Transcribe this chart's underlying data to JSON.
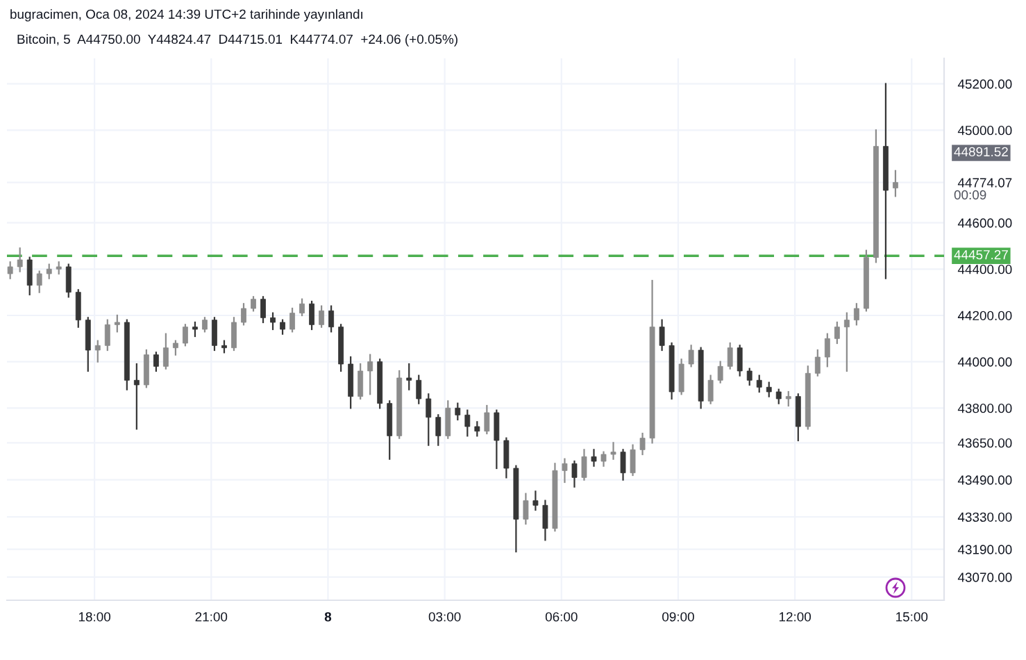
{
  "chart_data": {
    "type": "candlestick",
    "title": "bugracimen, Oca 08, 2024 14:39 UTC+2 tarihinde yayınlandı",
    "subtitle": "Bitcoin, 5  A44750.00  Y44824.47  D44715.01  K44774.07  +24.06 (+0.05%)",
    "grid": true,
    "xlim": [
      "2024-01-07T15:45",
      "2024-01-08T15:50"
    ],
    "xticks": [
      {
        "value": "2024-01-07T18:00",
        "label": "18:00"
      },
      {
        "value": "2024-01-07T21:00",
        "label": "21:00"
      },
      {
        "value": "2024-01-08T00:00",
        "label": "8"
      },
      {
        "value": "2024-01-08T03:00",
        "label": "03:00"
      },
      {
        "value": "2024-01-08T06:00",
        "label": "06:00"
      },
      {
        "value": "2024-01-08T09:00",
        "label": "09:00"
      },
      {
        "value": "2024-01-08T12:00",
        "label": "12:00"
      },
      {
        "value": "2024-01-08T15:00",
        "label": "15:00"
      }
    ],
    "ylim": [
      42970,
      45310
    ],
    "yticks": [
      {
        "value": 45200,
        "label": "45200.00"
      },
      {
        "value": 45000,
        "label": "45000.00"
      },
      {
        "value": 44774.07,
        "label": "44774.07"
      },
      {
        "value": 44600,
        "label": "44600.00"
      },
      {
        "value": 44400,
        "label": "44400.00"
      },
      {
        "value": 44200,
        "label": "44200.00"
      },
      {
        "value": 44000,
        "label": "44000.00"
      },
      {
        "value": 43800,
        "label": "43800.00"
      },
      {
        "value": 43650,
        "label": "43650.00"
      },
      {
        "value": 43490,
        "label": "43490.00"
      },
      {
        "value": 43330,
        "label": "43330.00"
      },
      {
        "value": 43190,
        "label": "43190.00"
      },
      {
        "value": 43070,
        "label": "43070.00"
      }
    ],
    "ref_lines": [
      {
        "axis": "y",
        "value": 44457.27,
        "label": "44457.27",
        "color": "#4caf50",
        "line_style": "dashed"
      }
    ],
    "annotations": [
      "44891.52",
      "00:09"
    ],
    "x": [
      "2024-01-07T15:50",
      "2024-01-07T16:05",
      "2024-01-07T16:20",
      "2024-01-07T16:35",
      "2024-01-07T16:50",
      "2024-01-07T17:05",
      "2024-01-07T17:20",
      "2024-01-07T17:35",
      "2024-01-07T17:50",
      "2024-01-07T18:05",
      "2024-01-07T18:20",
      "2024-01-07T18:35",
      "2024-01-07T18:50",
      "2024-01-07T19:05",
      "2024-01-07T19:20",
      "2024-01-07T19:35",
      "2024-01-07T19:50",
      "2024-01-07T20:05",
      "2024-01-07T20:20",
      "2024-01-07T20:35",
      "2024-01-07T20:50",
      "2024-01-07T21:05",
      "2024-01-07T21:20",
      "2024-01-07T21:35",
      "2024-01-07T21:50",
      "2024-01-07T22:05",
      "2024-01-07T22:20",
      "2024-01-07T22:35",
      "2024-01-07T22:50",
      "2024-01-07T23:05",
      "2024-01-07T23:20",
      "2024-01-07T23:35",
      "2024-01-07T23:50",
      "2024-01-08T00:05",
      "2024-01-08T00:20",
      "2024-01-08T00:35",
      "2024-01-08T00:50",
      "2024-01-08T01:05",
      "2024-01-08T01:20",
      "2024-01-08T01:35",
      "2024-01-08T01:50",
      "2024-01-08T02:05",
      "2024-01-08T02:20",
      "2024-01-08T02:35",
      "2024-01-08T02:50",
      "2024-01-08T03:05",
      "2024-01-08T03:20",
      "2024-01-08T03:35",
      "2024-01-08T03:50",
      "2024-01-08T04:05",
      "2024-01-08T04:20",
      "2024-01-08T04:35",
      "2024-01-08T04:50",
      "2024-01-08T05:05",
      "2024-01-08T05:20",
      "2024-01-08T05:35",
      "2024-01-08T05:50",
      "2024-01-08T06:05",
      "2024-01-08T06:20",
      "2024-01-08T06:35",
      "2024-01-08T06:50",
      "2024-01-08T07:05",
      "2024-01-08T07:20",
      "2024-01-08T07:35",
      "2024-01-08T07:50",
      "2024-01-08T08:05",
      "2024-01-08T08:20",
      "2024-01-08T08:35",
      "2024-01-08T08:50",
      "2024-01-08T09:05",
      "2024-01-08T09:20",
      "2024-01-08T09:35",
      "2024-01-08T09:50",
      "2024-01-08T10:05",
      "2024-01-08T10:20",
      "2024-01-08T10:35",
      "2024-01-08T10:50",
      "2024-01-08T11:05",
      "2024-01-08T11:20",
      "2024-01-08T11:35",
      "2024-01-08T11:50",
      "2024-01-08T12:05",
      "2024-01-08T12:20",
      "2024-01-08T12:35",
      "2024-01-08T12:50",
      "2024-01-08T13:05",
      "2024-01-08T13:20",
      "2024-01-08T13:35",
      "2024-01-08T13:50",
      "2024-01-08T14:05",
      "2024-01-08T14:20",
      "2024-01-08T14:35"
    ],
    "ohlc": [
      [
        44380,
        44430,
        44360,
        44410
      ],
      [
        44410,
        44490,
        44390,
        44440
      ],
      [
        44440,
        44450,
        44290,
        44330
      ],
      [
        44330,
        44390,
        44300,
        44380
      ],
      [
        44380,
        44420,
        44360,
        44400
      ],
      [
        44400,
        44430,
        44380,
        44410
      ],
      [
        44410,
        44420,
        44280,
        44300
      ],
      [
        44300,
        44310,
        44150,
        44180
      ],
      [
        44180,
        44190,
        43960,
        44050
      ],
      [
        44050,
        44090,
        44000,
        44070
      ],
      [
        44070,
        44180,
        44050,
        44160
      ],
      [
        44160,
        44200,
        44130,
        44170
      ],
      [
        44170,
        44180,
        43880,
        43920
      ],
      [
        43920,
        43990,
        43710,
        43900
      ],
      [
        43900,
        44050,
        43890,
        44030
      ],
      [
        44030,
        44040,
        43960,
        43980
      ],
      [
        43980,
        44120,
        43970,
        44060
      ],
      [
        44060,
        44090,
        44030,
        44080
      ],
      [
        44080,
        44160,
        44070,
        44150
      ],
      [
        44150,
        44170,
        44110,
        44140
      ],
      [
        44140,
        44190,
        44130,
        44180
      ],
      [
        44180,
        44190,
        44050,
        44070
      ],
      [
        44070,
        44090,
        44040,
        44060
      ],
      [
        44060,
        44190,
        44050,
        44170
      ],
      [
        44170,
        44250,
        44160,
        44230
      ],
      [
        44230,
        44280,
        44220,
        44270
      ],
      [
        44270,
        44280,
        44170,
        44190
      ],
      [
        44190,
        44210,
        44140,
        44170
      ],
      [
        44170,
        44180,
        44120,
        44140
      ],
      [
        44140,
        44230,
        44130,
        44210
      ],
      [
        44210,
        44270,
        44200,
        44250
      ],
      [
        44250,
        44260,
        44140,
        44160
      ],
      [
        44160,
        44240,
        44150,
        44220
      ],
      [
        44220,
        44240,
        44130,
        44150
      ],
      [
        44150,
        44160,
        43960,
        43990
      ],
      [
        43990,
        44020,
        43800,
        43850
      ],
      [
        43850,
        43990,
        43840,
        43960
      ],
      [
        43960,
        44030,
        43860,
        44000
      ],
      [
        44000,
        44010,
        43800,
        43820
      ],
      [
        43820,
        43830,
        43580,
        43680
      ],
      [
        43680,
        43960,
        43670,
        43930
      ],
      [
        43930,
        43990,
        43880,
        43920
      ],
      [
        43920,
        43940,
        43820,
        43840
      ],
      [
        43840,
        43860,
        43640,
        43760
      ],
      [
        43760,
        43770,
        43640,
        43680
      ],
      [
        43680,
        43830,
        43670,
        43800
      ],
      [
        43800,
        43820,
        43750,
        43770
      ],
      [
        43770,
        43790,
        43680,
        43720
      ],
      [
        43720,
        43740,
        43680,
        43700
      ],
      [
        43700,
        43810,
        43690,
        43780
      ],
      [
        43780,
        43790,
        43540,
        43660
      ],
      [
        43660,
        43670,
        43500,
        43540
      ],
      [
        43540,
        43550,
        43180,
        43320
      ],
      [
        43320,
        43430,
        43300,
        43400
      ],
      [
        43400,
        43440,
        43360,
        43380
      ],
      [
        43380,
        43400,
        43230,
        43280
      ],
      [
        43280,
        43560,
        43270,
        43530
      ],
      [
        43530,
        43580,
        43480,
        43560
      ],
      [
        43560,
        43570,
        43460,
        43500
      ],
      [
        43500,
        43620,
        43490,
        43590
      ],
      [
        43590,
        43620,
        43550,
        43570
      ],
      [
        43570,
        43610,
        43550,
        43600
      ],
      [
        43600,
        43650,
        43580,
        43610
      ],
      [
        43610,
        43620,
        43490,
        43520
      ],
      [
        43520,
        43640,
        43510,
        43620
      ],
      [
        43620,
        43690,
        43600,
        43670
      ],
      [
        43670,
        44350,
        43650,
        44150
      ],
      [
        44150,
        44180,
        44050,
        44070
      ],
      [
        44070,
        44080,
        43840,
        43870
      ],
      [
        43870,
        44010,
        43860,
        43990
      ],
      [
        43990,
        44070,
        43980,
        44050
      ],
      [
        44050,
        44060,
        43800,
        43830
      ],
      [
        43830,
        43940,
        43820,
        43920
      ],
      [
        43920,
        44000,
        43910,
        43980
      ],
      [
        43980,
        44080,
        43970,
        44060
      ],
      [
        44060,
        44070,
        43940,
        43960
      ],
      [
        43960,
        43970,
        43900,
        43920
      ],
      [
        43920,
        43940,
        43870,
        43890
      ],
      [
        43890,
        43910,
        43850,
        43870
      ],
      [
        43870,
        43880,
        43820,
        43840
      ],
      [
        43840,
        43870,
        43810,
        43850
      ],
      [
        43850,
        43860,
        43660,
        43720
      ],
      [
        43720,
        43980,
        43710,
        43950
      ],
      [
        43950,
        44050,
        43940,
        44020
      ],
      [
        44020,
        44120,
        43980,
        44100
      ],
      [
        44100,
        44170,
        44080,
        44150
      ],
      [
        44150,
        44210,
        43960,
        44180
      ],
      [
        44180,
        44250,
        44160,
        44230
      ],
      [
        44230,
        44480,
        44220,
        44450
      ],
      [
        44450,
        45000,
        44430,
        44930
      ],
      [
        44930,
        45200,
        44360,
        44740
      ],
      [
        44750,
        44824.47,
        44715.01,
        44774.07
      ]
    ],
    "colors": [
      "#8c8c8c",
      "#8c8c8c",
      "#363636",
      "#8c8c8c",
      "#8c8c8c",
      "#8c8c8c",
      "#363636",
      "#363636",
      "#363636",
      "#8c8c8c",
      "#8c8c8c",
      "#8c8c8c",
      "#363636",
      "#363636",
      "#8c8c8c",
      "#363636",
      "#8c8c8c",
      "#8c8c8c",
      "#8c8c8c",
      "#363636",
      "#8c8c8c",
      "#363636",
      "#363636",
      "#8c8c8c",
      "#8c8c8c",
      "#8c8c8c",
      "#363636",
      "#363636",
      "#363636",
      "#8c8c8c",
      "#8c8c8c",
      "#363636",
      "#8c8c8c",
      "#363636",
      "#363636",
      "#363636",
      "#8c8c8c",
      "#8c8c8c",
      "#363636",
      "#363636",
      "#8c8c8c",
      "#363636",
      "#363636",
      "#363636",
      "#363636",
      "#8c8c8c",
      "#363636",
      "#363636",
      "#363636",
      "#8c8c8c",
      "#363636",
      "#363636",
      "#363636",
      "#8c8c8c",
      "#363636",
      "#363636",
      "#8c8c8c",
      "#8c8c8c",
      "#363636",
      "#8c8c8c",
      "#363636",
      "#8c8c8c",
      "#8c8c8c",
      "#363636",
      "#8c8c8c",
      "#8c8c8c",
      "#8c8c8c",
      "#363636",
      "#363636",
      "#8c8c8c",
      "#8c8c8c",
      "#363636",
      "#8c8c8c",
      "#8c8c8c",
      "#8c8c8c",
      "#363636",
      "#363636",
      "#363636",
      "#363636",
      "#363636",
      "#8c8c8c",
      "#363636",
      "#8c8c8c",
      "#8c8c8c",
      "#8c8c8c",
      "#8c8c8c",
      "#8c8c8c",
      "#8c8c8c",
      "#8c8c8c",
      "#8c8c8c",
      "#363636",
      "#8c8c8c"
    ]
  }
}
